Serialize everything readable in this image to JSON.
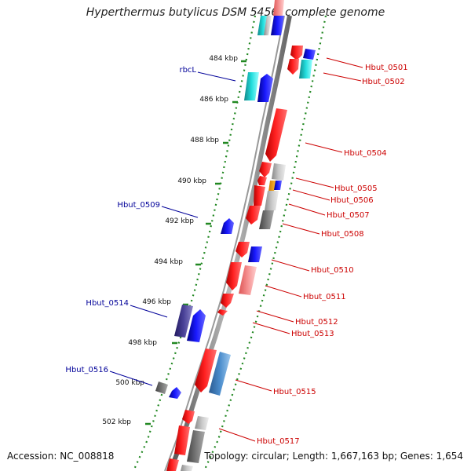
{
  "title": "Hyperthermus butylicus DSM 5456, complete genome",
  "accession": "Accession: NC_008818",
  "topology": "Topology: circular; Length: 1,667,163 bp; Genes: 1,654",
  "colors": {
    "forward_label": "#cc0000",
    "reverse_label": "#000099",
    "red": "#ff1a1a",
    "blue": "#1010ee",
    "cyan": "#22cccc",
    "gray": "#aaaaaa",
    "dark_gray": "#666666",
    "steel_blue": "#4a88c0",
    "navy": "#403a88",
    "pink": "#f08080",
    "ticks": "#228822"
  },
  "kbp_ticks": [
    "484 kbp",
    "486 kbp",
    "488 kbp",
    "490 kbp",
    "492 kbp",
    "494 kbp",
    "496 kbp",
    "498 kbp",
    "500 kbp",
    "502 kbp"
  ],
  "reverse_labels": [
    "rbcL",
    "Hbut_0509",
    "Hbut_0514",
    "Hbut_0516"
  ],
  "forward_labels": [
    "Hbut_0501",
    "Hbut_0502",
    "Hbut_0504",
    "Hbut_0505",
    "Hbut_0506",
    "Hbut_0507",
    "Hbut_0508",
    "Hbut_0510",
    "Hbut_0511",
    "Hbut_0512",
    "Hbut_0513",
    "Hbut_0515",
    "Hbut_0517"
  ]
}
